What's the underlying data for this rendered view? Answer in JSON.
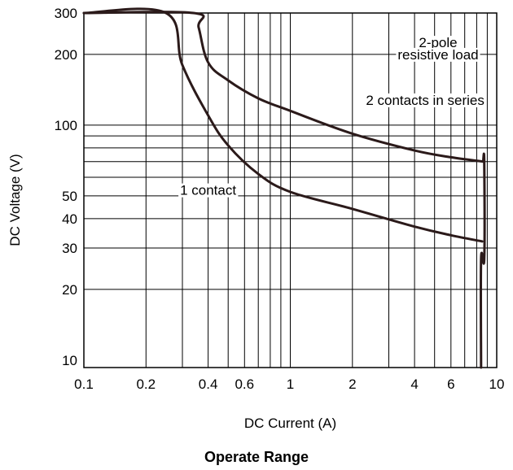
{
  "chart_data": {
    "type": "line",
    "title": "Operate Range",
    "xlabel": "DC Current (A)",
    "ylabel": "DC Voltage (V)",
    "x_scale": "log",
    "y_scale": "log",
    "xlim": [
      0.1,
      10
    ],
    "ylim": [
      9.3,
      300
    ],
    "grid": true,
    "x_ticks": [
      {
        "value": 0.1,
        "label": "0.1"
      },
      {
        "value": 0.2,
        "label": "0.2"
      },
      {
        "value": 0.4,
        "label": "0.4"
      },
      {
        "value": 0.6,
        "label": "0.6"
      },
      {
        "value": 1,
        "label": "1"
      },
      {
        "value": 2,
        "label": "2"
      },
      {
        "value": 4,
        "label": "4"
      },
      {
        "value": 6,
        "label": "6"
      },
      {
        "value": 10,
        "label": "10"
      }
    ],
    "y_ticks": [
      {
        "value": 10,
        "label": "10"
      },
      {
        "value": 20,
        "label": "20"
      },
      {
        "value": 30,
        "label": "30"
      },
      {
        "value": 40,
        "label": "40"
      },
      {
        "value": 50,
        "label": "50"
      },
      {
        "value": 100,
        "label": "100"
      },
      {
        "value": 200,
        "label": "200"
      },
      {
        "value": 300,
        "label": "300"
      }
    ],
    "x_gridlines": [
      0.2,
      0.3,
      0.4,
      0.5,
      0.6,
      0.7,
      0.8,
      0.9,
      1,
      2,
      3,
      4,
      5,
      6,
      7,
      8,
      9
    ],
    "y_gridlines": [
      20,
      30,
      40,
      50,
      60,
      70,
      80,
      90,
      100,
      200
    ],
    "series": [
      {
        "name": "1 contact",
        "x": [
          0.1,
          0.25,
          0.3,
          0.4,
          0.5,
          0.7,
          1,
          2,
          4,
          6,
          8.5
        ],
        "y": [
          300,
          300,
          180,
          110,
          82,
          62,
          52,
          44,
          37,
          34,
          32
        ]
      },
      {
        "name": "2 contacts in series",
        "x": [
          0.1,
          0.34,
          0.36,
          0.4,
          0.5,
          0.7,
          1,
          2,
          4,
          6,
          8.6
        ],
        "y": [
          300,
          300,
          260,
          185,
          155,
          130,
          115,
          92,
          78,
          73,
          70
        ]
      },
      {
        "name": "2-pole resistive load",
        "x": [
          8.6,
          8.7,
          8.7,
          8.4,
          8.4
        ],
        "y": [
          70,
          70,
          27,
          27,
          9.3
        ]
      }
    ],
    "annotations": [
      {
        "text": "2-pole",
        "x": 5.2,
        "y": 225
      },
      {
        "text": "resistive load",
        "x": 5.2,
        "y": 200
      },
      {
        "text": "2 contacts in series",
        "x": 4.5,
        "y": 128
      },
      {
        "text": "1 contact",
        "x": 0.4,
        "y": 53
      }
    ],
    "colors": {
      "grid": "#000000",
      "curve": "#2b1a1a",
      "text": "#000000"
    }
  }
}
